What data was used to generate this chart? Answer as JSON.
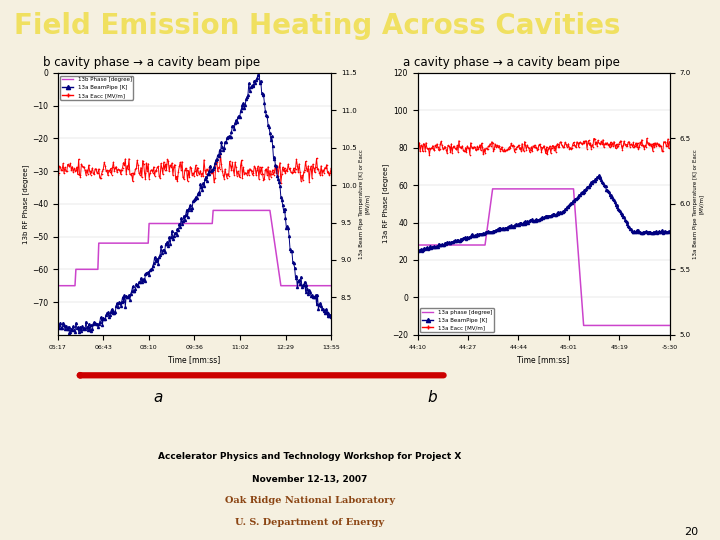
{
  "title": "Field Emission Heating Across Cavities",
  "title_color": "#1a5c1a",
  "title_fontsize": 20,
  "bg_color": "#f5f0e0",
  "left_subtitle": "b cavity phase → a cavity beam pipe",
  "right_subtitle": "a cavity phase → a cavity beam pipe",
  "footer_line1": "Accelerator Physics and Technology Workshop for Project X",
  "footer_line2": "November 12-13, 2007",
  "footer_line3": "Oak Ridge National Laboratory",
  "footer_line4": "U. S. Department of Energy",
  "label_a": "a",
  "label_b": "b",
  "page_num": "20",
  "white": "#ffffff",
  "arrow_color": "#cc0000",
  "footer_text_color": "#8b4513",
  "left_time_labels": [
    "05:17",
    "06:43",
    "08:10",
    "09:36",
    "11:02",
    "12:29",
    "13:55"
  ],
  "right_time_labels": [
    "44:10",
    "44:27",
    "44:44",
    "45:01",
    "45:19",
    "-5:30"
  ]
}
